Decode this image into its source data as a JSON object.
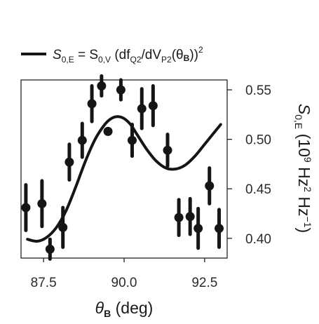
{
  "chart_data": {
    "type": "scatter",
    "xlabel": "θB (deg)",
    "ylabel": "S0,E (10⁹ Hz² Hz⁻¹)",
    "xlim": [
      86.8,
      93.2
    ],
    "ylim": [
      0.38,
      0.56
    ],
    "x_ticks": [
      "87.5",
      "90.0",
      "92.5"
    ],
    "y_ticks": [
      "0.40",
      "0.45",
      "0.50",
      "0.55"
    ],
    "y_axis_side": "right",
    "grid": false,
    "legend_position": "top",
    "legend": {
      "label_main": "S",
      "label_sub1": "0,E",
      "label_eq": " = S",
      "label_sub2": "0,V",
      "label_open": " (df",
      "label_sub3": "Q2",
      "label_mid": "/dV",
      "label_sub4": "P2",
      "label_theta": "(θ",
      "label_b": "B",
      "label_close": "))",
      "label_sq": "2"
    },
    "series": [
      {
        "kind": "points_with_error",
        "x": [
          86.95,
          87.45,
          87.7,
          88.1,
          88.3,
          88.7,
          89.0,
          89.3,
          89.5,
          89.9,
          90.25,
          90.55,
          90.9,
          91.35,
          91.7,
          92.05,
          92.3,
          92.65,
          92.95
        ],
        "y": [
          0.431,
          0.435,
          0.389,
          0.411,
          0.477,
          0.499,
          0.536,
          0.554,
          0.508,
          0.55,
          0.499,
          0.531,
          0.534,
          0.489,
          0.421,
          0.422,
          0.41,
          0.453,
          0.41
        ],
        "err": [
          0.023,
          0.023,
          0.01,
          0.02,
          0.018,
          0.017,
          0.018,
          0.01,
          0.002,
          0.01,
          0.016,
          0.02,
          0.02,
          0.016,
          0.018,
          0.018,
          0.02,
          0.018,
          0.019
        ]
      },
      {
        "kind": "line",
        "x": [
          87.0,
          87.3,
          87.6,
          87.9,
          88.2,
          88.5,
          88.8,
          89.1,
          89.4,
          89.6,
          89.8,
          90.0,
          90.2,
          90.4,
          90.7,
          91.0,
          91.3,
          91.6,
          91.9,
          92.2,
          92.5,
          92.8,
          93.0
        ],
        "y": [
          0.399,
          0.397,
          0.401,
          0.411,
          0.428,
          0.452,
          0.478,
          0.5,
          0.515,
          0.521,
          0.523,
          0.521,
          0.515,
          0.505,
          0.49,
          0.478,
          0.471,
          0.47,
          0.474,
          0.483,
          0.495,
          0.507,
          0.515
        ]
      }
    ]
  }
}
